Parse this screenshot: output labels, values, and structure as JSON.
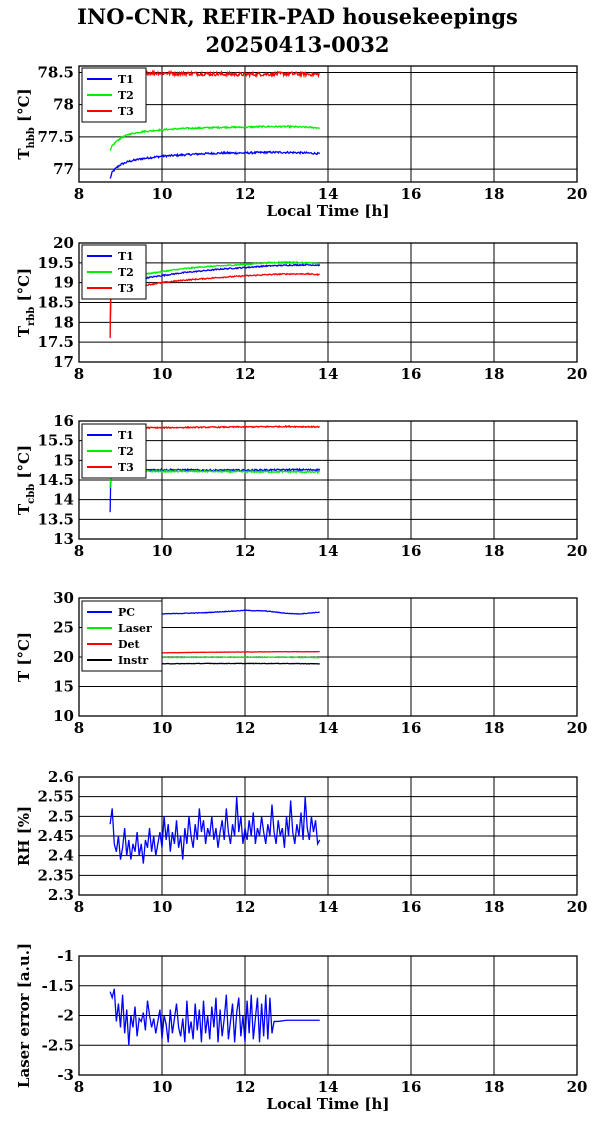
{
  "page": {
    "title_line1": "INO-CNR, REFIR-PAD housekeepings",
    "title_line2": "20250413-0032"
  },
  "chart_data": [
    {
      "id": "hbb",
      "type": "line",
      "ylabel_main": "T",
      "ylabel_sub": "hbb",
      "ylabel_unit": " [°C]",
      "xlabel": "Local Time [h]",
      "xlim": [
        8,
        20
      ],
      "ylim": [
        76.8,
        78.6
      ],
      "yticks": [
        77,
        77.5,
        78,
        78.5
      ],
      "ytick_labels": [
        "77",
        "77.5",
        "78",
        "78.5"
      ],
      "xticks": [
        8,
        10,
        12,
        14,
        16,
        18,
        20
      ],
      "grid": true,
      "legend": "top-left",
      "series": [
        {
          "name": "T1",
          "color": "#0000ff",
          "noise": 0.015,
          "x": [
            8.75,
            8.8,
            8.9,
            9.0,
            9.2,
            9.5,
            10,
            10.5,
            11,
            11.5,
            12,
            12.5,
            13,
            13.5,
            13.8
          ],
          "y": [
            76.85,
            76.95,
            77.02,
            77.07,
            77.12,
            77.16,
            77.2,
            77.22,
            77.24,
            77.25,
            77.25,
            77.26,
            77.26,
            77.25,
            77.24
          ]
        },
        {
          "name": "T2",
          "color": "#00ee00",
          "noise": 0.012,
          "x": [
            8.75,
            8.8,
            8.9,
            9.0,
            9.2,
            9.5,
            10,
            10.5,
            11,
            11.5,
            12,
            12.5,
            13,
            13.5,
            13.8
          ],
          "y": [
            77.28,
            77.36,
            77.43,
            77.48,
            77.54,
            77.58,
            77.61,
            77.63,
            77.64,
            77.65,
            77.65,
            77.66,
            77.66,
            77.65,
            77.64
          ]
        },
        {
          "name": "T3",
          "color": "#ff0000",
          "noise": 0.03,
          "x": [
            8.75,
            9.0,
            10,
            11,
            12,
            13,
            13.8
          ],
          "y": [
            78.5,
            78.5,
            78.49,
            78.48,
            78.47,
            78.48,
            78.47
          ]
        }
      ]
    },
    {
      "id": "rbb",
      "type": "line",
      "ylabel_main": "T",
      "ylabel_sub": "rbb",
      "ylabel_unit": " [°C]",
      "xlabel": "",
      "xlim": [
        8,
        20
      ],
      "ylim": [
        17,
        20
      ],
      "yticks": [
        17,
        17.5,
        18,
        18.5,
        19,
        19.5,
        20
      ],
      "ytick_labels": [
        "17",
        "17.5",
        "18",
        "18.5",
        "19",
        "19.5",
        "20"
      ],
      "xticks": [
        8,
        10,
        12,
        14,
        16,
        18,
        20
      ],
      "grid": true,
      "legend": "top-left",
      "series": [
        {
          "name": "T1",
          "color": "#0000ff",
          "noise": 0.015,
          "x": [
            8.75,
            8.76,
            8.78,
            8.85,
            9.0,
            9.5,
            10,
            10.5,
            11,
            11.5,
            12,
            12.5,
            13,
            13.5,
            13.8
          ],
          "y": [
            17.7,
            18.8,
            18.95,
            19.0,
            19.05,
            19.1,
            19.18,
            19.25,
            19.3,
            19.35,
            19.38,
            19.42,
            19.44,
            19.45,
            19.44
          ]
        },
        {
          "name": "T2",
          "color": "#00ee00",
          "noise": 0.015,
          "x": [
            8.75,
            8.76,
            8.78,
            8.85,
            9.0,
            9.5,
            10,
            10.5,
            11,
            11.5,
            12,
            12.5,
            13,
            13.5,
            13.8
          ],
          "y": [
            17.7,
            18.9,
            19.02,
            19.07,
            19.12,
            19.2,
            19.28,
            19.35,
            19.4,
            19.43,
            19.46,
            19.5,
            19.52,
            19.5,
            19.48
          ]
        },
        {
          "name": "T3",
          "color": "#ff0000",
          "noise": 0.015,
          "x": [
            8.75,
            8.76,
            8.78,
            8.85,
            9.0,
            9.5,
            10,
            10.5,
            11,
            11.5,
            12,
            12.5,
            13,
            13.5,
            13.8
          ],
          "y": [
            17.6,
            18.6,
            18.75,
            18.8,
            18.85,
            18.92,
            19.0,
            19.06,
            19.1,
            19.14,
            19.17,
            19.2,
            19.22,
            19.22,
            19.2
          ]
        }
      ]
    },
    {
      "id": "cbb",
      "type": "line",
      "ylabel_main": "T",
      "ylabel_sub": "cbb",
      "ylabel_unit": " [°C]",
      "xlabel": "",
      "xlim": [
        8,
        20
      ],
      "ylim": [
        13,
        16
      ],
      "yticks": [
        13,
        13.5,
        14,
        14.5,
        15,
        15.5,
        16
      ],
      "ytick_labels": [
        "13",
        "13.5",
        "14",
        "14.5",
        "15",
        "15.5",
        "16"
      ],
      "xticks": [
        8,
        10,
        12,
        14,
        16,
        18,
        20
      ],
      "grid": true,
      "legend": "top-left",
      "series": [
        {
          "name": "T1",
          "color": "#0000ff",
          "noise": 0.02,
          "x": [
            8.75,
            8.76,
            8.78,
            8.85,
            9.0,
            10,
            11,
            12,
            13,
            13.8
          ],
          "y": [
            13.7,
            14.6,
            14.72,
            14.75,
            14.76,
            14.76,
            14.75,
            14.75,
            14.76,
            14.76
          ]
        },
        {
          "name": "T2",
          "color": "#00ee00",
          "noise": 0.02,
          "x": [
            8.75,
            8.76,
            8.78,
            8.85,
            9.0,
            10,
            11,
            12,
            13,
            13.8
          ],
          "y": [
            14.3,
            14.6,
            14.7,
            14.72,
            14.73,
            14.72,
            14.72,
            14.71,
            14.71,
            14.7
          ]
        },
        {
          "name": "T3",
          "color": "#ff0000",
          "noise": 0.015,
          "x": [
            8.75,
            9.0,
            10,
            11,
            12,
            13,
            13.8
          ],
          "y": [
            15.82,
            15.83,
            15.83,
            15.84,
            15.85,
            15.86,
            15.85
          ]
        }
      ]
    },
    {
      "id": "temps",
      "type": "line",
      "ylabel_main": "T [°C]",
      "ylabel_sub": "",
      "ylabel_unit": "",
      "xlabel": "",
      "xlim": [
        8,
        20
      ],
      "ylim": [
        10,
        30
      ],
      "yticks": [
        10,
        15,
        20,
        25,
        30
      ],
      "ytick_labels": [
        "10",
        "15",
        "20",
        "25",
        "30"
      ],
      "xticks": [
        8,
        10,
        12,
        14,
        16,
        18,
        20
      ],
      "grid": true,
      "legend": "top-left",
      "series": [
        {
          "name": "PC",
          "color": "#0000ff",
          "noise": 0.05,
          "x": [
            8.75,
            9.0,
            10,
            11,
            11.5,
            12,
            12.5,
            13,
            13.3,
            13.8
          ],
          "y": [
            27.0,
            27.2,
            27.3,
            27.5,
            27.7,
            27.9,
            27.8,
            27.4,
            27.3,
            27.6
          ]
        },
        {
          "name": "Laser",
          "color": "#00ee00",
          "noise": 0.05,
          "x": [
            8.75,
            9.0,
            10,
            11,
            12,
            13,
            13.8
          ],
          "y": [
            19.8,
            19.9,
            19.9,
            19.95,
            19.95,
            19.95,
            19.9
          ]
        },
        {
          "name": "Det",
          "color": "#ff0000",
          "noise": 0.03,
          "x": [
            8.75,
            9.0,
            10,
            11,
            12,
            13,
            13.8
          ],
          "y": [
            20.5,
            20.6,
            20.7,
            20.8,
            20.85,
            20.9,
            20.9
          ]
        },
        {
          "name": "Instr",
          "color": "#000000",
          "noise": 0.04,
          "x": [
            8.75,
            9.0,
            10,
            11,
            12,
            13,
            13.8
          ],
          "y": [
            18.7,
            18.8,
            18.85,
            18.9,
            18.9,
            18.9,
            18.85
          ]
        }
      ]
    },
    {
      "id": "rh",
      "type": "line",
      "ylabel_main": "RH [%]",
      "ylabel_sub": "",
      "ylabel_unit": "",
      "xlabel": "",
      "xlim": [
        8,
        20
      ],
      "ylim": [
        2.3,
        2.6
      ],
      "yticks": [
        2.3,
        2.35,
        2.4,
        2.45,
        2.5,
        2.55,
        2.6
      ],
      "ytick_labels": [
        "2.3",
        "2.35",
        "2.4",
        "2.45",
        "2.5",
        "2.55",
        "2.6"
      ],
      "xticks": [
        8,
        10,
        12,
        14,
        16,
        18,
        20
      ],
      "grid": true,
      "legend": "none",
      "series": [
        {
          "name": "",
          "color": "#0000ff",
          "noise": 0,
          "x": [
            8.75,
            8.8,
            8.85,
            8.9,
            8.95,
            9.0,
            9.05,
            9.1,
            9.15,
            9.2,
            9.25,
            9.3,
            9.35,
            9.4,
            9.45,
            9.5,
            9.55,
            9.6,
            9.65,
            9.7,
            9.75,
            9.8,
            9.85,
            9.9,
            9.95,
            10.0,
            10.05,
            10.1,
            10.15,
            10.2,
            10.25,
            10.3,
            10.35,
            10.4,
            10.45,
            10.5,
            10.55,
            10.6,
            10.65,
            10.7,
            10.75,
            10.8,
            10.85,
            10.9,
            10.95,
            11.0,
            11.05,
            11.1,
            11.15,
            11.2,
            11.25,
            11.3,
            11.35,
            11.4,
            11.45,
            11.5,
            11.55,
            11.6,
            11.65,
            11.7,
            11.75,
            11.8,
            11.85,
            11.9,
            11.95,
            12.0,
            12.05,
            12.1,
            12.15,
            12.2,
            12.25,
            12.3,
            12.35,
            12.4,
            12.45,
            12.5,
            12.55,
            12.6,
            12.65,
            12.7,
            12.75,
            12.8,
            12.85,
            12.9,
            12.95,
            13.0,
            13.05,
            13.1,
            13.15,
            13.2,
            13.25,
            13.3,
            13.35,
            13.4,
            13.45,
            13.5,
            13.55,
            13.6,
            13.65,
            13.7,
            13.75,
            13.8
          ],
          "y": [
            2.48,
            2.52,
            2.43,
            2.41,
            2.45,
            2.39,
            2.42,
            2.47,
            2.4,
            2.44,
            2.39,
            2.43,
            2.41,
            2.46,
            2.4,
            2.43,
            2.38,
            2.44,
            2.42,
            2.47,
            2.41,
            2.45,
            2.4,
            2.43,
            2.46,
            2.42,
            2.5,
            2.44,
            2.48,
            2.41,
            2.46,
            2.43,
            2.49,
            2.42,
            2.45,
            2.39,
            2.47,
            2.43,
            2.5,
            2.45,
            2.42,
            2.48,
            2.44,
            2.52,
            2.46,
            2.49,
            2.43,
            2.47,
            2.45,
            2.5,
            2.44,
            2.47,
            2.42,
            2.46,
            2.49,
            2.44,
            2.52,
            2.46,
            2.43,
            2.48,
            2.45,
            2.55,
            2.46,
            2.5,
            2.43,
            2.47,
            2.44,
            2.49,
            2.45,
            2.51,
            2.43,
            2.47,
            2.45,
            2.5,
            2.46,
            2.43,
            2.48,
            2.45,
            2.53,
            2.46,
            2.43,
            2.49,
            2.45,
            2.47,
            2.42,
            2.5,
            2.45,
            2.54,
            2.46,
            2.43,
            2.48,
            2.45,
            2.51,
            2.44,
            2.55,
            2.47,
            2.44,
            2.5,
            2.46,
            2.49,
            2.43,
            2.44
          ]
        }
      ]
    },
    {
      "id": "laser",
      "type": "line",
      "ylabel_main": "Laser error [a.u.]",
      "ylabel_sub": "",
      "ylabel_unit": "",
      "xlabel": "Local Time [h]",
      "xlim": [
        8,
        20
      ],
      "ylim": [
        -3,
        -1
      ],
      "yticks": [
        -3,
        -2.5,
        -2,
        -1.5,
        -1
      ],
      "ytick_labels": [
        "-3",
        "-2.5",
        "-2",
        "-1.5",
        "-1"
      ],
      "xticks": [
        8,
        10,
        12,
        14,
        16,
        18,
        20
      ],
      "grid": true,
      "legend": "none",
      "series": [
        {
          "name": "",
          "color": "#0000ff",
          "noise": 0,
          "x": [
            8.75,
            8.8,
            8.85,
            8.9,
            8.95,
            9.0,
            9.05,
            9.1,
            9.15,
            9.2,
            9.25,
            9.3,
            9.35,
            9.4,
            9.45,
            9.5,
            9.55,
            9.6,
            9.65,
            9.7,
            9.75,
            9.8,
            9.85,
            9.9,
            9.95,
            10.0,
            10.05,
            10.1,
            10.15,
            10.2,
            10.25,
            10.3,
            10.35,
            10.4,
            10.45,
            10.5,
            10.55,
            10.6,
            10.65,
            10.7,
            10.75,
            10.8,
            10.85,
            10.9,
            10.95,
            11.0,
            11.05,
            11.1,
            11.15,
            11.2,
            11.25,
            11.3,
            11.35,
            11.4,
            11.45,
            11.5,
            11.55,
            11.6,
            11.65,
            11.7,
            11.75,
            11.8,
            11.85,
            11.9,
            11.95,
            12.0,
            12.05,
            12.1,
            12.15,
            12.2,
            12.25,
            12.3,
            12.35,
            12.4,
            12.45,
            12.5,
            12.55,
            12.6,
            12.65,
            12.7,
            12.8,
            13.0,
            13.2,
            13.4,
            13.6,
            13.8
          ],
          "y": [
            -1.6,
            -1.7,
            -1.55,
            -2.1,
            -1.8,
            -2.2,
            -1.65,
            -2.3,
            -1.9,
            -2.5,
            -2.0,
            -2.2,
            -1.85,
            -2.35,
            -2.05,
            -2.1,
            -1.95,
            -2.25,
            -1.75,
            -2.0,
            -2.2,
            -2.05,
            -2.3,
            -2.1,
            -1.9,
            -2.4,
            -2.0,
            -2.15,
            -2.45,
            -1.9,
            -2.3,
            -2.05,
            -1.8,
            -2.2,
            -2.35,
            -2.05,
            -2.45,
            -1.75,
            -2.3,
            -2.1,
            -2.4,
            -1.8,
            -2.25,
            -1.9,
            -2.45,
            -1.75,
            -2.3,
            -2.0,
            -2.4,
            -1.85,
            -2.2,
            -1.7,
            -2.45,
            -1.9,
            -2.35,
            -2.05,
            -1.65,
            -2.4,
            -2.1,
            -1.8,
            -2.45,
            -1.95,
            -1.7,
            -2.35,
            -2.0,
            -2.45,
            -1.75,
            -2.3,
            -1.65,
            -2.4,
            -2.05,
            -1.7,
            -2.45,
            -1.8,
            -2.35,
            -1.65,
            -2.4,
            -1.7,
            -2.3,
            -2.1,
            -2.1,
            -2.08,
            -2.08,
            -2.08,
            -2.08,
            -2.08
          ]
        }
      ]
    }
  ]
}
